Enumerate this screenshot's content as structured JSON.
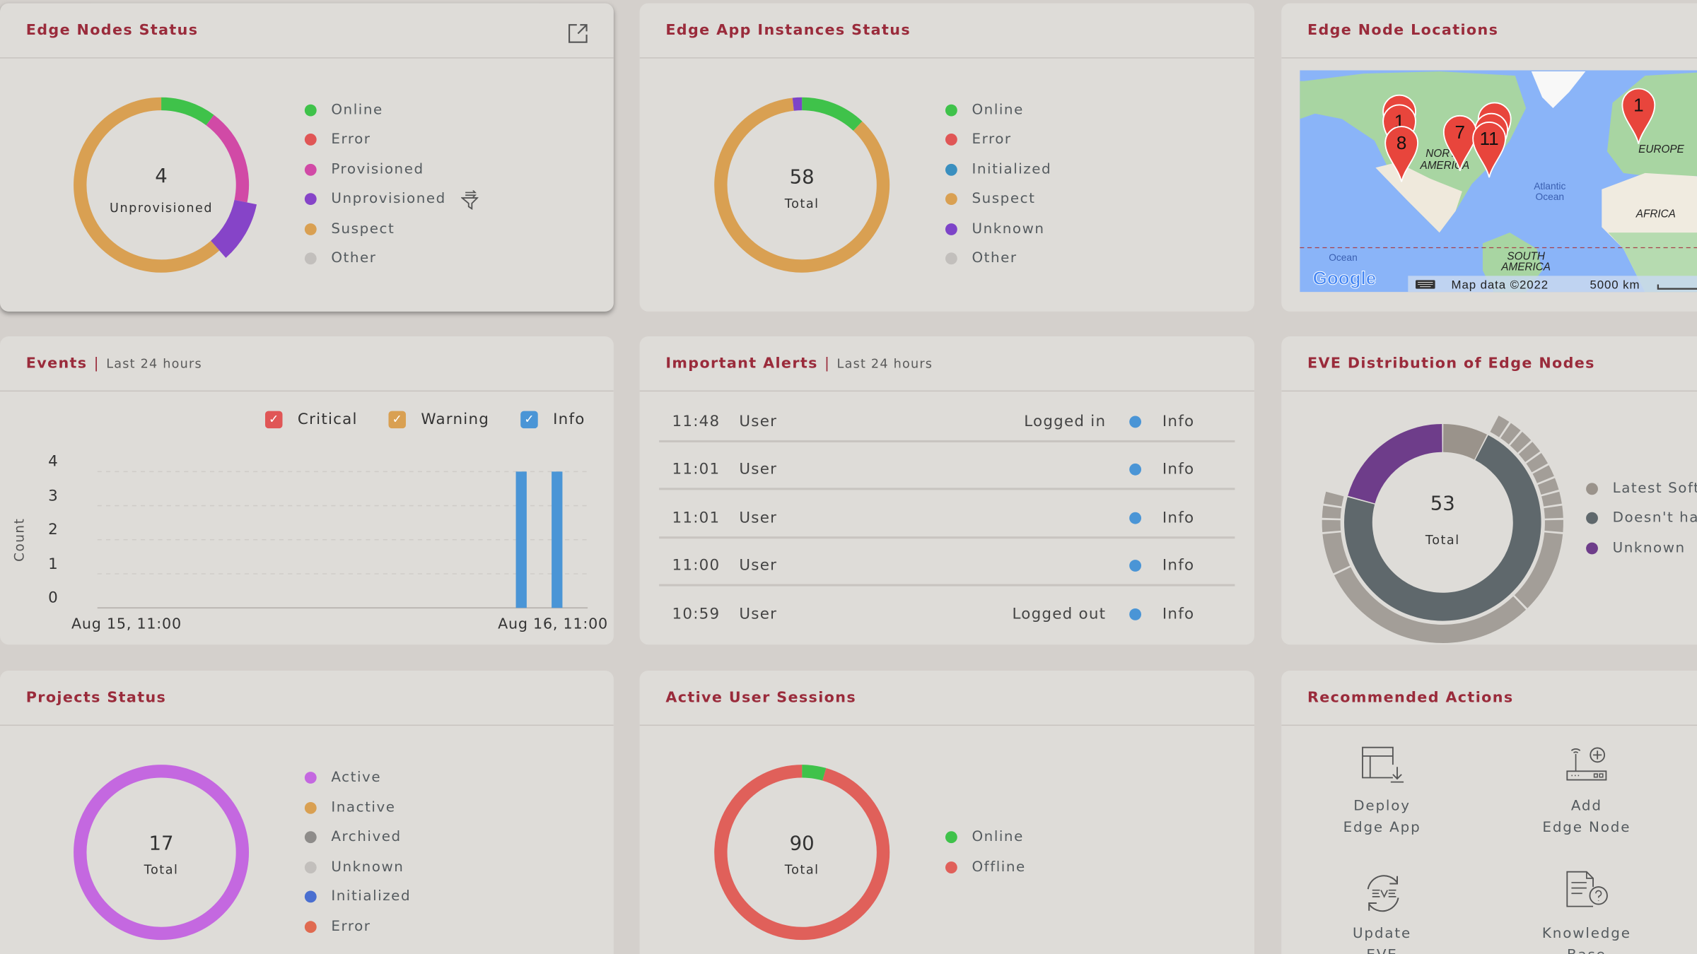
{
  "edge_nodes": {
    "title": "Edge Nodes Status",
    "center_value": "4",
    "center_label": "Unprovisioned",
    "highlighted": "Unprovisioned",
    "segments": [
      {
        "label": "Online",
        "color": "#3fc24a",
        "value": 4
      },
      {
        "label": "Error",
        "color": "#e05656",
        "value": 0
      },
      {
        "label": "Provisioned",
        "color": "#d14aa6",
        "value": 7
      },
      {
        "label": "Unprovisioned",
        "color": "#8644c8",
        "value": 4
      },
      {
        "label": "Suspect",
        "color": "#d9a052",
        "value": 24
      },
      {
        "label": "Other",
        "color": "#c2bfbc",
        "value": 0
      }
    ]
  },
  "app_instances": {
    "title": "Edge App Instances Status",
    "center_value": "58",
    "center_label": "Total",
    "segments": [
      {
        "label": "Online",
        "color": "#3fc24a",
        "value": 7
      },
      {
        "label": "Error",
        "color": "#e05656",
        "value": 0
      },
      {
        "label": "Initialized",
        "color": "#3a8fbf",
        "value": 0
      },
      {
        "label": "Suspect",
        "color": "#d9a052",
        "value": 50
      },
      {
        "label": "Unknown",
        "color": "#7d44c8",
        "value": 1
      },
      {
        "label": "Other",
        "color": "#c2bfbc",
        "value": 0
      }
    ]
  },
  "locations": {
    "title": "Edge Node Locations",
    "markers": [
      "1",
      "8",
      "7",
      "11",
      "1"
    ],
    "labels": {
      "north_america_1": "NORTH",
      "north_america_2": "AMERICA",
      "atlantic_1": "Atlantic",
      "atlantic_2": "Ocean",
      "europe": "EUROPE",
      "africa": "AFRICA",
      "south_america_1": "SOUTH",
      "south_america_2": "AMERICA",
      "ocean": "Ocean"
    },
    "logo": "Google",
    "attribution": "Map data ©2022",
    "scale": "5000 km"
  },
  "events": {
    "title": "Events",
    "subtitle": "Last 24 hours",
    "legend": [
      {
        "label": "Critical",
        "color": "#e05656",
        "checked": true
      },
      {
        "label": "Warning",
        "color": "#d9a052",
        "checked": true
      },
      {
        "label": "Info",
        "color": "#4a95d6",
        "checked": true
      }
    ],
    "ylabel": "Count",
    "yticks": [
      "0",
      "1",
      "2",
      "3",
      "4"
    ],
    "ylim": [
      0,
      4
    ],
    "xticks": [
      "Aug 15, 11:00",
      "Aug 16, 11:00"
    ],
    "bars": [
      {
        "time": "Aug 16, 07:45",
        "series": "Info",
        "value": 4
      },
      {
        "time": "Aug 16, 09:30",
        "series": "Info",
        "value": 4
      }
    ]
  },
  "alerts": {
    "title": "Important Alerts",
    "subtitle": "Last 24 hours",
    "rows": [
      {
        "time": "11:48",
        "source": "User",
        "message": "Logged in",
        "severity": "Info"
      },
      {
        "time": "11:01",
        "source": "User",
        "message": "",
        "severity": "Info"
      },
      {
        "time": "11:01",
        "source": "User",
        "message": "",
        "severity": "Info"
      },
      {
        "time": "11:00",
        "source": "User",
        "message": "",
        "severity": "Info"
      },
      {
        "time": "10:59",
        "source": "User",
        "message": "Logged out",
        "severity": "Info"
      }
    ],
    "severity_color": "#4a95d6"
  },
  "eve": {
    "title": "EVE Distribution of Edge Nodes",
    "center_value": "53",
    "center_label": "Total",
    "segments": [
      {
        "label": "Latest Soft",
        "color": "#9a938b",
        "value": 4
      },
      {
        "label": "Doesn't ha",
        "color": "#5f686c",
        "value": 38
      },
      {
        "label": "Unknown",
        "color": "#6e3d8a",
        "value": 11
      }
    ],
    "outer_ring": [
      1,
      1,
      1,
      1,
      1,
      1,
      1,
      1,
      1,
      1,
      6,
      16,
      3,
      1,
      1,
      1
    ],
    "outer_color": "#a39e98"
  },
  "projects": {
    "title": "Projects Status",
    "center_value": "17",
    "center_label": "Total",
    "segments": [
      {
        "label": "Active",
        "color": "#c468e0",
        "value": 17
      },
      {
        "label": "Inactive",
        "color": "#d9a052",
        "value": 0
      },
      {
        "label": "Archived",
        "color": "#8e8c8a",
        "value": 0
      },
      {
        "label": "Unknown",
        "color": "#c2bfbc",
        "value": 0
      },
      {
        "label": "Initialized",
        "color": "#4a6fd0",
        "value": 0
      },
      {
        "label": "Error",
        "color": "#e06a50",
        "value": 0
      }
    ]
  },
  "sessions": {
    "title": "Active User Sessions",
    "center_value": "90",
    "center_label": "Total",
    "segments": [
      {
        "label": "Online",
        "color": "#3fc24a",
        "value": 4
      },
      {
        "label": "Offline",
        "color": "#e0605a",
        "value": 86
      }
    ]
  },
  "actions": {
    "title": "Recommended Actions",
    "items": [
      {
        "line1": "Deploy",
        "line2": "Edge App",
        "icon": "deploy-app-icon"
      },
      {
        "line1": "Add",
        "line2": "Edge Node",
        "icon": "add-node-icon"
      },
      {
        "line1": "Update",
        "line2": "EVE",
        "icon": "update-eve-icon"
      },
      {
        "line1": "Knowledge",
        "line2": "Base",
        "icon": "knowledge-base-icon"
      }
    ]
  }
}
